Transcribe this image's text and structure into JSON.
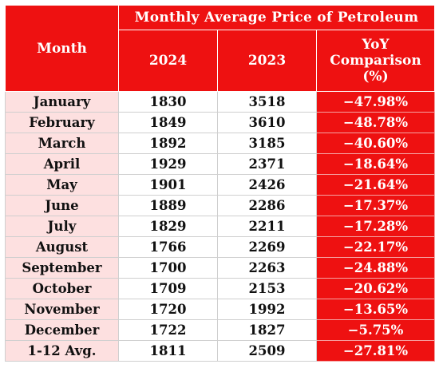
{
  "table": {
    "title": "Monthly Average Price of Petroleum",
    "headers": {
      "month": "Month",
      "year_2024": "2024",
      "year_2023": "2023",
      "yoy_line1": "YoY",
      "yoy_line2": "Comparison",
      "yoy_line3": "(%)"
    },
    "rows": [
      {
        "month": "January",
        "v2024": "1830",
        "v2023": "3518",
        "yoy": "−47.98%"
      },
      {
        "month": "February",
        "v2024": "1849",
        "v2023": "3610",
        "yoy": "−48.78%"
      },
      {
        "month": "March",
        "v2024": "1892",
        "v2023": "3185",
        "yoy": "−40.60%"
      },
      {
        "month": "April",
        "v2024": "1929",
        "v2023": "2371",
        "yoy": "−18.64%"
      },
      {
        "month": "May",
        "v2024": "1901",
        "v2023": "2426",
        "yoy": "−21.64%"
      },
      {
        "month": "June",
        "v2024": "1889",
        "v2023": "2286",
        "yoy": "−17.37%"
      },
      {
        "month": "July",
        "v2024": "1829",
        "v2023": "2211",
        "yoy": "−17.28%"
      },
      {
        "month": "August",
        "v2024": "1766",
        "v2023": "2269",
        "yoy": "−22.17%"
      },
      {
        "month": "September",
        "v2024": "1700",
        "v2023": "2263",
        "yoy": "−24.88%"
      },
      {
        "month": "October",
        "v2024": "1709",
        "v2023": "2153",
        "yoy": "−20.62%"
      },
      {
        "month": "November",
        "v2024": "1720",
        "v2023": "1992",
        "yoy": "−13.65%"
      },
      {
        "month": "December",
        "v2024": "1722",
        "v2023": "1827",
        "yoy": "−5.75%"
      },
      {
        "month": "1-12 Avg.",
        "v2024": "1811",
        "v2023": "2509",
        "yoy": "−27.81%"
      }
    ]
  }
}
